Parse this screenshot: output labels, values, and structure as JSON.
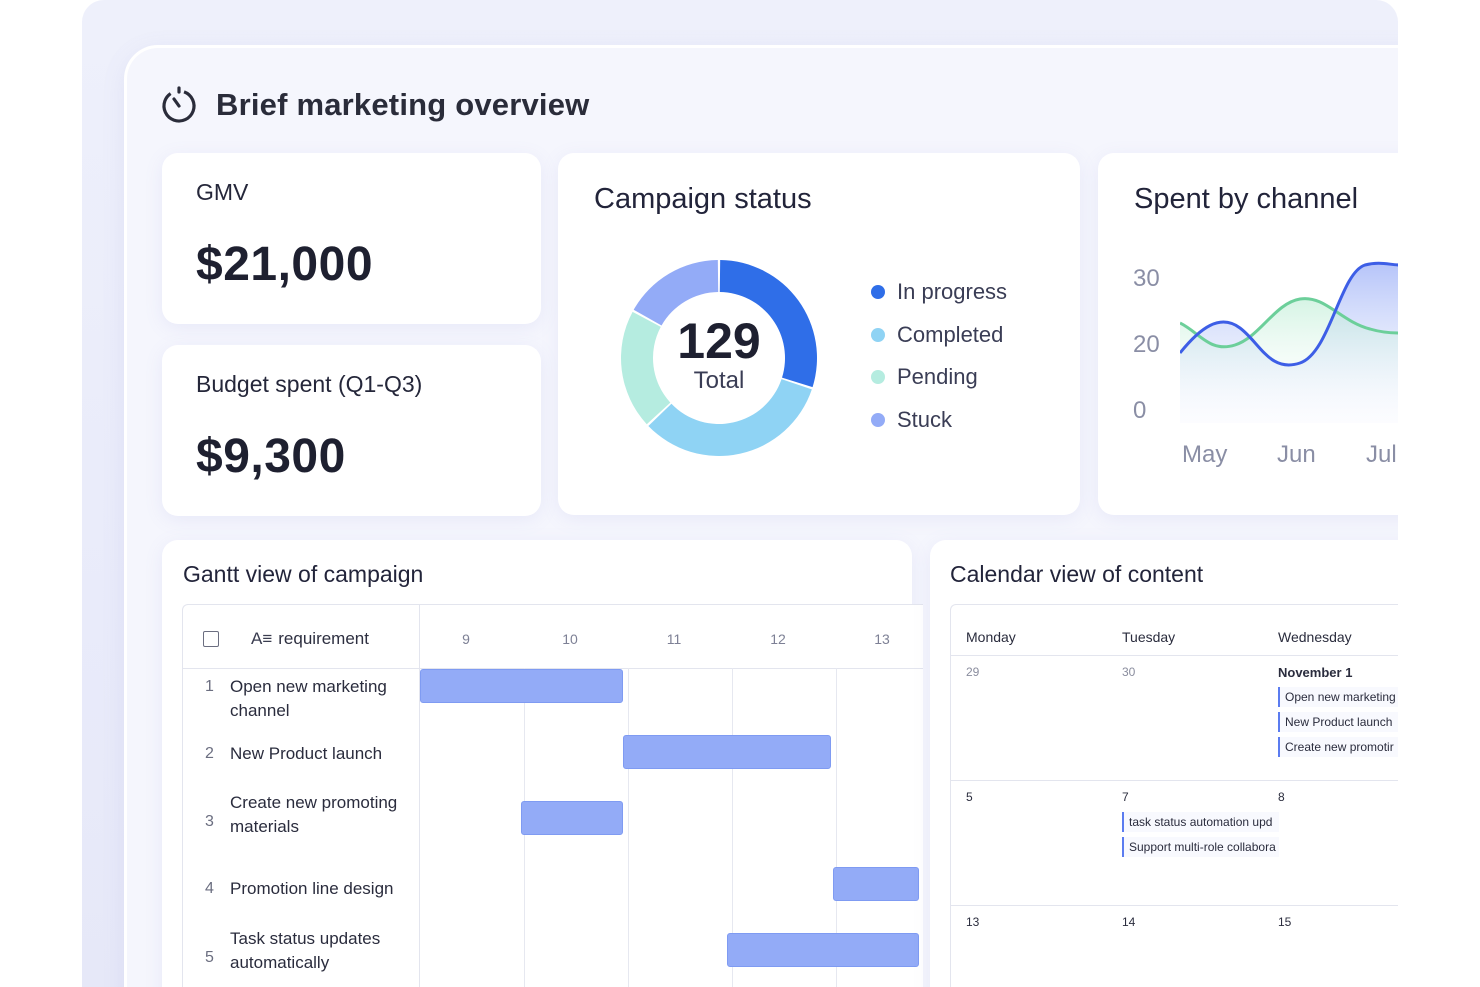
{
  "page": {
    "title": "Brief marketing overview",
    "title_icon": "timer-icon"
  },
  "gmv": {
    "label": "GMV",
    "value": "$21,000"
  },
  "budget": {
    "label": "Budget spent (Q1-Q3)",
    "value": "$9,300"
  },
  "campaign_status": {
    "title": "Campaign status",
    "total_number": "129",
    "total_label": "Total",
    "segments": [
      {
        "name": "In progress",
        "fraction": 0.3,
        "color": "#2f6ee8"
      },
      {
        "name": "Completed",
        "fraction": 0.33,
        "color": "#8fd3f4"
      },
      {
        "name": "Pending",
        "fraction": 0.2,
        "color": "#b5ece0"
      },
      {
        "name": "Stuck",
        "fraction": 0.17,
        "color": "#93abf7"
      }
    ]
  },
  "spent_by_channel": {
    "title": "Spent by channel",
    "y_ticks": [
      "30",
      "20",
      "0"
    ],
    "x_ticks": [
      "May",
      "Jun",
      "Jul"
    ],
    "colors": {
      "blue": "#3d5ee6",
      "green": "#6ccf9a"
    }
  },
  "gantt": {
    "title": "Gantt view of campaign",
    "column_header": "requirement",
    "days": [
      "9",
      "10",
      "11",
      "12",
      "13"
    ],
    "rows": [
      {
        "num": "1",
        "label": "Open new marketing channel",
        "start": 9.0,
        "end": 10.95
      },
      {
        "num": "2",
        "label": "New Product launch",
        "start": 10.95,
        "end": 12.95
      },
      {
        "num": "3",
        "label": "Create new promoting materials",
        "start": 9.97,
        "end": 10.95
      },
      {
        "num": "4",
        "label": "Promotion line design",
        "start": 12.97,
        "end": 13.8
      },
      {
        "num": "5",
        "label": "Task status updates automatically",
        "start": 11.95,
        "end": 13.8
      }
    ],
    "bar_color": "#93abf7"
  },
  "calendar": {
    "title": "Calendar view of content",
    "day_names": [
      "Monday",
      "Tuesday",
      "Wednesday"
    ],
    "weeks": [
      {
        "dates": [
          "29",
          "30",
          "November 1"
        ],
        "events": [
          [],
          [],
          [
            "Open new marketing",
            "New Product launch",
            "Create new promotir"
          ]
        ]
      },
      {
        "dates": [
          "5",
          "7",
          "8"
        ],
        "events": [
          [],
          [
            "task status automation upd",
            "Support multi-role collabora"
          ],
          []
        ]
      },
      {
        "dates": [
          "13",
          "14",
          "15"
        ],
        "events": [
          [],
          [],
          []
        ]
      }
    ]
  }
}
